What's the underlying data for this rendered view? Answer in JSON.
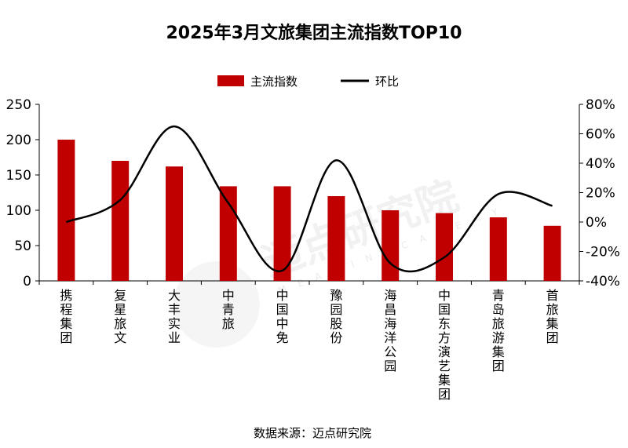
{
  "chart_data": {
    "type": "bar",
    "title": "2025年3月文旅集团主流指数TOP10",
    "categories": [
      "携程集团",
      "复星旅文",
      "大丰实业",
      "中青旅",
      "中国中免",
      "豫园股份",
      "海昌海洋公园",
      "中国东方演艺集团",
      "青岛旅游集团",
      "首旅集团"
    ],
    "series": [
      {
        "name": "主流指数",
        "axis": "left",
        "type": "bar",
        "color": "#c00000",
        "values": [
          200,
          170,
          162,
          134,
          134,
          120,
          100,
          96,
          90,
          78
        ]
      },
      {
        "name": "环比",
        "axis": "right",
        "type": "line",
        "color": "#000000",
        "smooth": true,
        "values": [
          0,
          15,
          65,
          13,
          -33,
          42,
          -28,
          -24,
          19,
          11
        ]
      }
    ],
    "ylim_left": [
      0,
      250
    ],
    "yticks_left": [
      "0",
      "50",
      "100",
      "150",
      "200",
      "250"
    ],
    "ylim_right": [
      -40,
      80
    ],
    "yticks_right": [
      "-40%",
      "-20%",
      "0%",
      "20%",
      "40%",
      "60%",
      "80%"
    ],
    "legend": "top-center",
    "grid": false
  },
  "source": "数据来源：迈点研究院",
  "watermark": {
    "text": "迈点研究院",
    "sub": "M E A D I N   A C A D E M Y"
  }
}
